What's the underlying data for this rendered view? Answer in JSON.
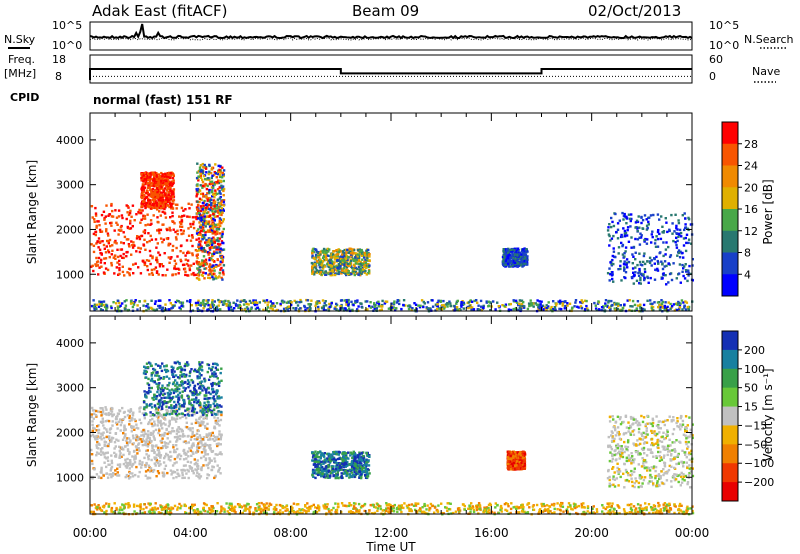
{
  "header": {
    "station": "Adak East (fitACF)",
    "beam": "Beam 09",
    "date": "02/Oct/2013"
  },
  "nsky_panel": {
    "left_label": "N.Sky",
    "right_label": "N.Search",
    "left_ticks": [
      "10^5",
      "10^0"
    ],
    "right_ticks": [
      "10^5",
      "10^0"
    ]
  },
  "freq_panel": {
    "left_label_1": "Freq.",
    "left_label_2": "[MHz]",
    "right_label": "Nave",
    "left_ticks": [
      "18",
      "8"
    ],
    "right_ticks": [
      "60",
      "0"
    ],
    "freq_steps": [
      {
        "start": 0.0,
        "end": 10.0,
        "value": 13.0
      },
      {
        "start": 10.0,
        "end": 18.0,
        "value": 11.0
      },
      {
        "start": 18.0,
        "end": 24.0,
        "value": 13.0
      }
    ],
    "nave_level": 10
  },
  "cpid": {
    "label": "CPID",
    "text": "normal (fast) 151 RF"
  },
  "chart_data": [
    {
      "type": "heatmap",
      "name": "power",
      "xlabel": "Time UT",
      "ylabel": "Slant Range [km]",
      "xlim": [
        0,
        24
      ],
      "ylim": [
        180,
        4600
      ],
      "y_ticks": [
        1000,
        2000,
        3000,
        4000
      ],
      "colorbar_label": "Power [dB]",
      "colorbar_ticks": [
        "28",
        "24",
        "20",
        "16",
        "12",
        "8",
        "4"
      ],
      "colorbar_colors": [
        "#ff0000",
        "#f85500",
        "#f08a00",
        "#e0b000",
        "#48a848",
        "#287870",
        "#1840c8",
        "#0000ff"
      ],
      "scatter_regions": [
        {
          "t": [
            0.0,
            5.3
          ],
          "r": [
            1000,
            2600
          ],
          "values": "high",
          "description_color": "#ff2000"
        },
        {
          "t": [
            2.0,
            3.3
          ],
          "r": [
            2500,
            3300
          ],
          "values": "high"
        },
        {
          "t": [
            4.2,
            5.3
          ],
          "r": [
            900,
            3500
          ],
          "values": "mixed"
        },
        {
          "t": [
            8.8,
            11.1
          ],
          "r": [
            1000,
            1600
          ],
          "values": "medium"
        },
        {
          "t": [
            16.4,
            17.4
          ],
          "r": [
            1200,
            1600
          ],
          "values": "low"
        },
        {
          "t": [
            20.6,
            24.0
          ],
          "r": [
            800,
            2400
          ],
          "values": "low"
        },
        {
          "t": [
            0.0,
            24.0
          ],
          "r": [
            200,
            450
          ],
          "values": "low-ground-scatter"
        }
      ]
    },
    {
      "type": "heatmap",
      "name": "velocity",
      "xlabel": "Time UT",
      "ylabel": "Slant Range [km]",
      "xlim": [
        0,
        24
      ],
      "ylim": [
        180,
        4600
      ],
      "x_ticks": [
        "00:00",
        "04:00",
        "08:00",
        "12:00",
        "16:00",
        "20:00",
        "00:00"
      ],
      "y_ticks": [
        1000,
        2000,
        3000,
        4000
      ],
      "colorbar_label": "Velocity [m s⁻¹]",
      "colorbar_ticks": [
        "200",
        "100",
        "50",
        "15",
        "−15",
        "−50",
        "−100",
        "−200"
      ],
      "colorbar_colors": [
        "#1430b4",
        "#1880a0",
        "#38a048",
        "#68c838",
        "#c0c0c0",
        "#f0b000",
        "#f08000",
        "#f03800",
        "#e80000"
      ],
      "scatter_regions": [
        {
          "t": [
            0.0,
            5.2
          ],
          "r": [
            1000,
            2600
          ],
          "values": "ground-scatter-grey"
        },
        {
          "t": [
            2.1,
            5.2
          ],
          "r": [
            2400,
            3600
          ],
          "values": "positive"
        },
        {
          "t": [
            8.8,
            11.1
          ],
          "r": [
            1000,
            1600
          ],
          "values": "positive"
        },
        {
          "t": [
            16.6,
            17.3
          ],
          "r": [
            1200,
            1600
          ],
          "values": "negative"
        },
        {
          "t": [
            20.6,
            24.0
          ],
          "r": [
            800,
            2400
          ],
          "values": "mixed-grey"
        },
        {
          "t": [
            0.0,
            24.0
          ],
          "r": [
            200,
            450
          ],
          "values": "small-negative"
        }
      ]
    }
  ]
}
